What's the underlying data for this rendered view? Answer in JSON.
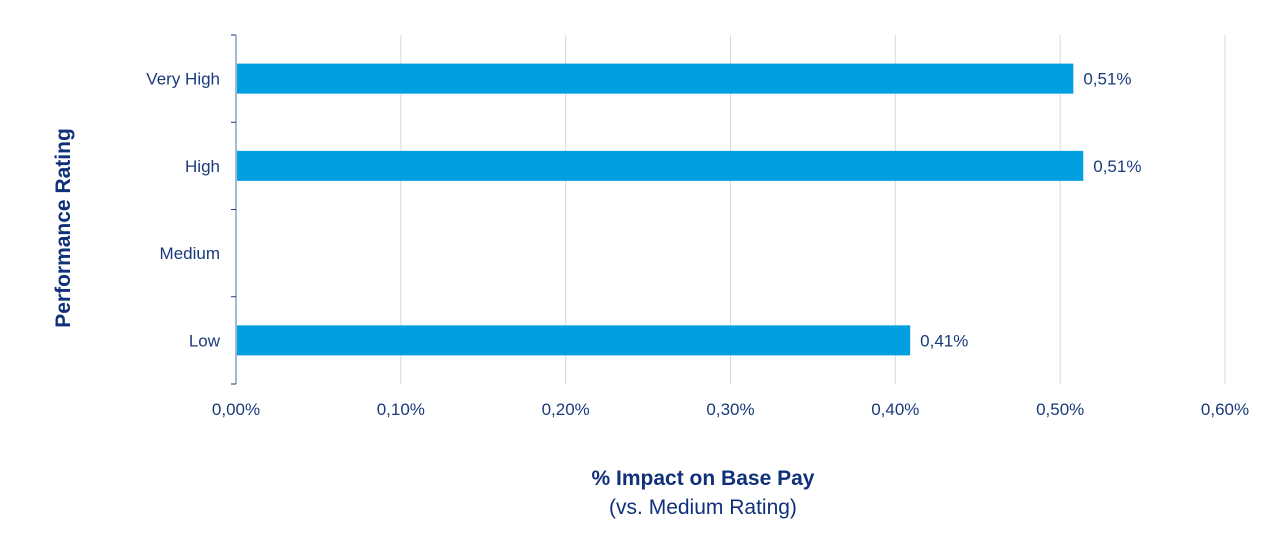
{
  "chart_data": {
    "type": "bar",
    "orientation": "horizontal",
    "categories": [
      "Very High",
      "High",
      "Medium",
      "Low"
    ],
    "values": [
      0.508,
      0.514,
      null,
      0.409
    ],
    "data_labels": [
      "0,51%",
      "0,51%",
      "",
      "0,41%"
    ],
    "xlabel": "% Impact on Base Pay",
    "xlabel_sub": "(vs. Medium Rating)",
    "ylabel": "Performance Rating",
    "xlim": [
      0,
      0.6
    ],
    "x_ticks": [
      0,
      0.1,
      0.2,
      0.3,
      0.4,
      0.5,
      0.6
    ],
    "x_tick_labels": [
      "0,00%",
      "0,10%",
      "0,20%",
      "0,30%",
      "0,40%",
      "0,50%",
      "0,60%"
    ],
    "grid": "vertical",
    "legend": "none",
    "colors": {
      "bar": "#009fe0",
      "text": "#1a3a7a",
      "grid": "#d9d9d9",
      "axis": "#a9b6d0"
    }
  }
}
